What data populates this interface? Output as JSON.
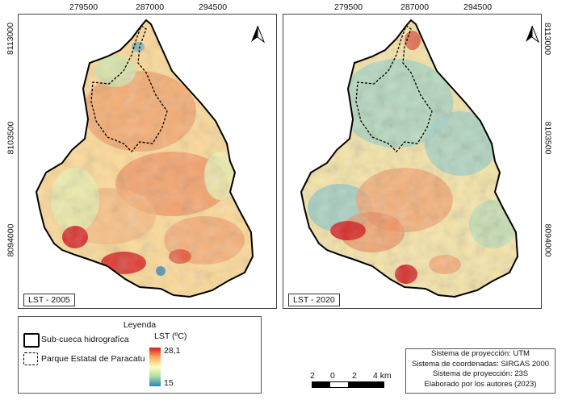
{
  "maps": [
    {
      "label": "LST - 2005",
      "x_ticks": [
        "279500",
        "287000",
        "294500"
      ],
      "y_ticks": [
        "8113000",
        "8103500",
        "8094000"
      ]
    },
    {
      "label": "LST - 2020",
      "x_ticks": [
        "279500",
        "287000",
        "294500"
      ],
      "y_ticks": [
        "8113000",
        "8103500",
        "8094000"
      ]
    }
  ],
  "legend": {
    "title": "Leyenda",
    "items": [
      {
        "label": "Sub-cueca hidrografíca",
        "symbol": "solid-outline"
      },
      {
        "label": "Parque Estatal de Paracatu",
        "symbol": "dashed-outline"
      }
    ],
    "colorbar": {
      "title": "LST (ºC)",
      "max": "28,1",
      "min": "15",
      "colors": [
        "#d7191c",
        "#fdae61",
        "#ffffbf",
        "#abdda4",
        "#2b83ba"
      ]
    }
  },
  "info": {
    "line1": "Sistema de proyección: UTM",
    "line2": "Sistema de coordenadas: SIRGAS 2000",
    "line3": "Sistema de proyección: 23S",
    "line4": "Elaborado por los autores (2023)"
  },
  "scale": {
    "labels": [
      "2",
      "0",
      "2",
      "4 km"
    ]
  },
  "north_arrow": {
    "icon": "north-arrow-icon"
  }
}
